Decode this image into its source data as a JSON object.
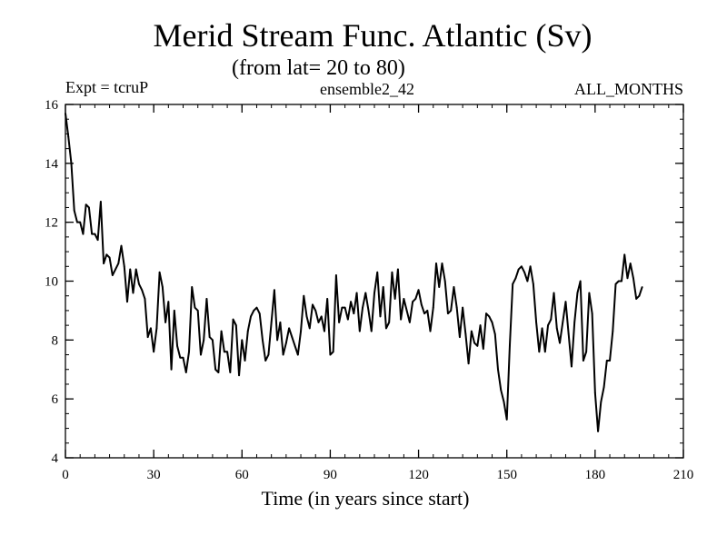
{
  "header": {
    "title": "Merid Stream Func. Atlantic (Sv)",
    "subtitle": "(from lat= 20 to 80)",
    "experiment": "Expt = tcruP",
    "ensemble": "ensemble2_42",
    "period": "ALL_MONTHS"
  },
  "chart_data": {
    "type": "line",
    "title": "Merid Stream Func. Atlantic (Sv)",
    "subtitle": "(from lat= 20 to 80)",
    "xlabel": "Time (in years since start)",
    "ylabel": "",
    "xlim": [
      0,
      210
    ],
    "ylim": [
      4,
      16
    ],
    "x_ticks": [
      0,
      30,
      60,
      90,
      120,
      150,
      180,
      210
    ],
    "y_ticks": [
      4,
      6,
      8,
      10,
      12,
      14,
      16
    ],
    "x_minor_step": 5,
    "y_minor_step": 0.5,
    "grid": false,
    "series": [
      {
        "name": "ensemble2_42",
        "color": "#000000",
        "values": [
          15.7,
          14.9,
          14.0,
          12.4,
          12.0,
          12.0,
          11.6,
          12.6,
          12.5,
          11.6,
          11.6,
          11.4,
          12.7,
          10.6,
          10.9,
          10.8,
          10.2,
          10.4,
          10.6,
          11.2,
          10.5,
          9.3,
          10.4,
          9.6,
          10.4,
          9.9,
          9.7,
          9.4,
          8.1,
          8.4,
          7.6,
          8.4,
          10.3,
          9.8,
          8.6,
          9.3,
          7.0,
          9.0,
          7.8,
          7.4,
          7.4,
          6.9,
          7.6,
          9.8,
          9.1,
          9.0,
          7.5,
          8.0,
          9.4,
          8.1,
          8.0,
          7.0,
          6.9,
          8.3,
          7.6,
          7.6,
          6.9,
          8.7,
          8.5,
          6.8,
          8.0,
          7.3,
          8.3,
          8.8,
          9.0,
          9.1,
          8.9,
          8.0,
          7.3,
          7.5,
          8.6,
          9.7,
          8.0,
          8.6,
          7.5,
          7.9,
          8.4,
          8.1,
          7.8,
          7.5,
          8.3,
          9.5,
          8.8,
          8.4,
          9.2,
          9.0,
          8.6,
          8.8,
          8.3,
          9.4,
          7.5,
          7.6,
          10.2,
          8.6,
          9.1,
          9.1,
          8.7,
          9.3,
          8.9,
          9.6,
          8.3,
          9.1,
          9.6,
          9.0,
          8.3,
          9.6,
          10.3,
          8.8,
          9.8,
          8.4,
          8.6,
          10.3,
          9.4,
          10.4,
          8.7,
          9.4,
          9.0,
          8.6,
          9.3,
          9.4,
          9.7,
          9.2,
          8.9,
          9.0,
          8.3,
          9.1,
          10.6,
          9.8,
          10.6,
          10.0,
          8.9,
          9.0,
          9.8,
          9.1,
          8.1,
          9.1,
          8.2,
          7.2,
          8.3,
          7.9,
          7.8,
          8.5,
          7.7,
          8.9,
          8.8,
          8.6,
          8.2,
          7.0,
          6.3,
          5.9,
          5.3,
          7.8,
          9.9,
          10.1,
          10.4,
          10.5,
          10.3,
          10.0,
          10.5,
          9.9,
          8.6,
          7.6,
          8.4,
          7.6,
          8.5,
          8.7,
          9.6,
          8.4,
          7.9,
          8.6,
          9.3,
          8.2,
          7.1,
          8.6,
          9.6,
          10.0,
          7.3,
          7.6,
          9.6,
          8.9,
          6.2,
          4.9,
          5.9,
          6.4,
          7.3,
          7.3,
          8.3,
          9.9,
          10.0,
          10.0,
          10.9,
          10.1,
          10.6,
          10.1,
          9.4,
          9.5,
          9.8
        ]
      }
    ]
  }
}
